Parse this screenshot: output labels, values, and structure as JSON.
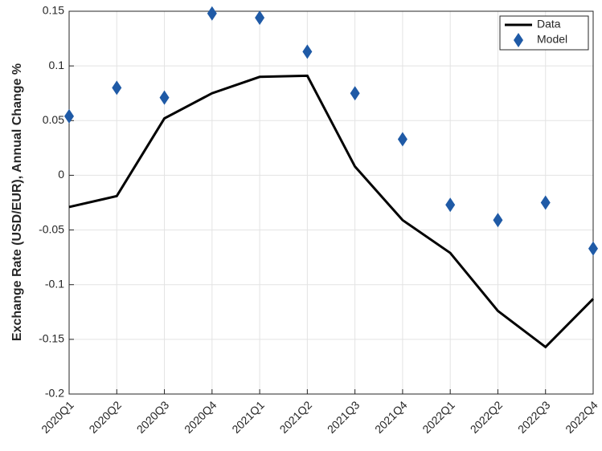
{
  "chart_data": {
    "type": "line",
    "ylabel": "Exchange Rate (USD/EUR), Annual Change %",
    "categories": [
      "2020Q1",
      "2020Q2",
      "2020Q3",
      "2020Q4",
      "2021Q1",
      "2021Q2",
      "2021Q3",
      "2021Q4",
      "2022Q1",
      "2022Q2",
      "2022Q3",
      "2022Q4"
    ],
    "series": [
      {
        "name": "Data",
        "color": "#000000",
        "style": "line",
        "values": [
          -0.029,
          -0.019,
          0.052,
          0.075,
          0.09,
          0.091,
          0.008,
          -0.041,
          -0.071,
          -0.124,
          -0.157,
          -0.113
        ]
      },
      {
        "name": "Model",
        "color": "#1f5aa6",
        "style": "marker",
        "values": [
          0.054,
          0.08,
          0.071,
          0.148,
          0.144,
          0.113,
          0.075,
          0.033,
          -0.027,
          -0.041,
          -0.025,
          -0.067
        ]
      }
    ],
    "ylim": [
      -0.2,
      0.15
    ],
    "yticks": [
      -0.2,
      -0.15,
      -0.1,
      -0.05,
      0,
      0.05,
      0.1,
      0.15
    ],
    "grid": true,
    "legend": "top-right"
  }
}
